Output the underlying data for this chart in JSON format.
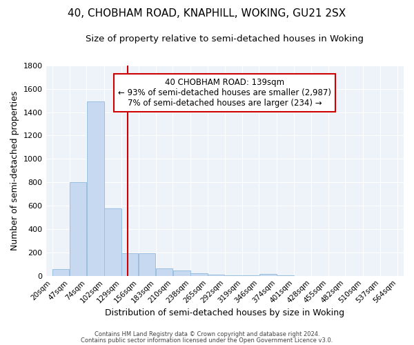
{
  "title": "40, CHOBHAM ROAD, KNAPHILL, WOKING, GU21 2SX",
  "subtitle": "Size of property relative to semi-detached houses in Woking",
  "xlabel": "Distribution of semi-detached houses by size in Woking",
  "ylabel": "Number of semi-detached properties",
  "bar_left_edges": [
    20,
    47,
    74,
    102,
    129,
    156,
    183,
    210,
    238,
    265,
    292,
    319,
    346,
    374,
    401,
    428,
    455,
    482,
    510,
    537
  ],
  "bar_widths": [
    27,
    27,
    28,
    27,
    27,
    27,
    27,
    28,
    27,
    27,
    27,
    27,
    28,
    27,
    27,
    27,
    27,
    28,
    27,
    27
  ],
  "bar_heights": [
    55,
    800,
    1490,
    575,
    195,
    195,
    65,
    45,
    20,
    10,
    5,
    3,
    18,
    2,
    0,
    0,
    0,
    0,
    0,
    0
  ],
  "xtick_labels": [
    "20sqm",
    "47sqm",
    "74sqm",
    "102sqm",
    "129sqm",
    "156sqm",
    "183sqm",
    "210sqm",
    "238sqm",
    "265sqm",
    "292sqm",
    "319sqm",
    "346sqm",
    "374sqm",
    "401sqm",
    "428sqm",
    "455sqm",
    "482sqm",
    "510sqm",
    "537sqm",
    "564sqm"
  ],
  "xtick_positions": [
    20,
    47,
    74,
    102,
    129,
    156,
    183,
    210,
    238,
    265,
    292,
    319,
    346,
    374,
    401,
    428,
    455,
    482,
    510,
    537,
    564
  ],
  "ylim": [
    0,
    1800
  ],
  "xlim": [
    10,
    574
  ],
  "bar_color": "#c6d9f0",
  "bar_edge_color": "#9abfdf",
  "property_size": 139,
  "red_line_color": "#cc0000",
  "annotation_line1": "40 CHOBHAM ROAD: 139sqm",
  "annotation_line2": "← 93% of semi-detached houses are smaller (2,987)",
  "annotation_line3": "7% of semi-detached houses are larger (234) →",
  "annotation_box_facecolor": "white",
  "annotation_box_edgecolor": "#cc0000",
  "footer_line1": "Contains HM Land Registry data © Crown copyright and database right 2024.",
  "footer_line2": "Contains public sector information licensed under the Open Government Licence v3.0.",
  "bg_color": "#eef3fa",
  "grid_color": "white",
  "title_fontsize": 11,
  "subtitle_fontsize": 9.5,
  "axis_label_fontsize": 9,
  "tick_fontsize": 7.5,
  "annotation_fontsize": 8.5
}
